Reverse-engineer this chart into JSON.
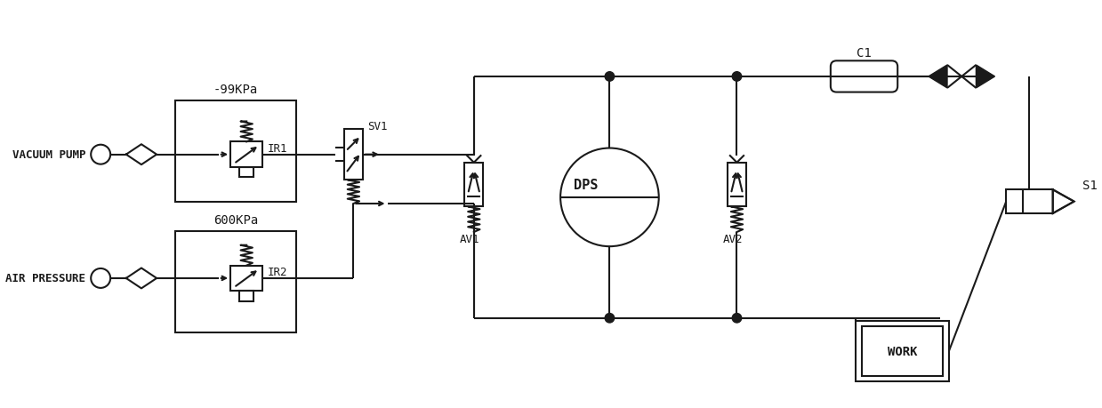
{
  "background_color": "#ffffff",
  "line_color": "#1a1a1a",
  "line_width": 1.5,
  "fig_width": 12.39,
  "fig_height": 4.6,
  "labels": {
    "vacuum_pump": "VACUUM PUMP",
    "air_pressure": "AIR PRESSURE",
    "ir1": "IR1",
    "ir2": "IR2",
    "sv1": "SV1",
    "av1": "AV1",
    "av2": "AV2",
    "dps": "DPS",
    "c1": "C1",
    "s1": "S1",
    "work": "WORK",
    "neg99": "-99KPa",
    "pos600": "600KPa"
  }
}
